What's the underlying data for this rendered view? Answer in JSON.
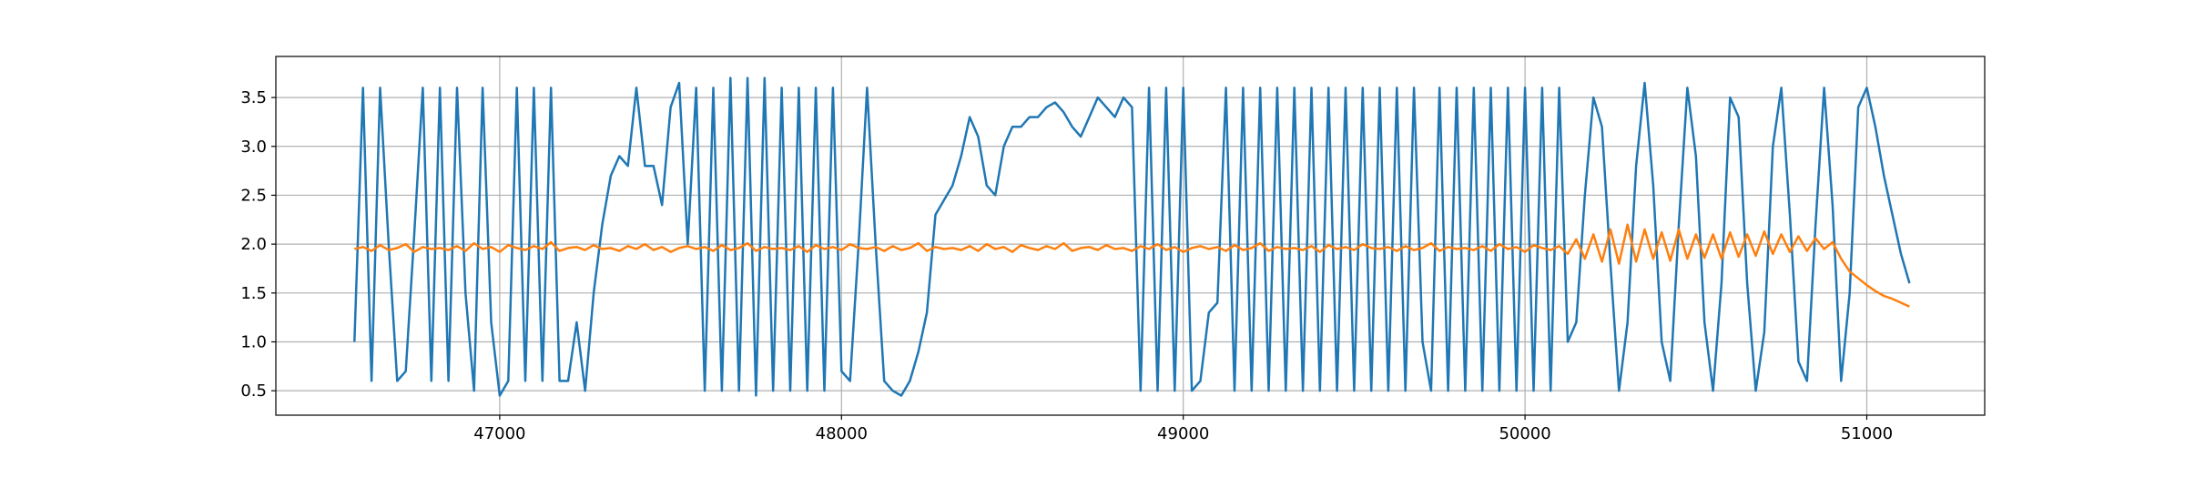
{
  "chart_data": {
    "type": "line",
    "x": [
      46575,
      46600,
      46625,
      46650,
      46675,
      46700,
      46725,
      46750,
      46775,
      46800,
      46825,
      46850,
      46875,
      46900,
      46925,
      46950,
      46975,
      47000,
      47025,
      47050,
      47075,
      47100,
      47125,
      47150,
      47175,
      47200,
      47225,
      47250,
      47275,
      47300,
      47325,
      47350,
      47375,
      47400,
      47425,
      47450,
      47475,
      47500,
      47525,
      47550,
      47575,
      47600,
      47625,
      47650,
      47675,
      47700,
      47725,
      47750,
      47775,
      47800,
      47825,
      47850,
      47875,
      47900,
      47925,
      47950,
      47975,
      48000,
      48025,
      48050,
      48075,
      48100,
      48125,
      48150,
      48175,
      48200,
      48225,
      48250,
      48275,
      48300,
      48325,
      48350,
      48375,
      48400,
      48425,
      48450,
      48475,
      48500,
      48525,
      48550,
      48575,
      48600,
      48625,
      48650,
      48675,
      48700,
      48725,
      48750,
      48775,
      48800,
      48825,
      48850,
      48875,
      48900,
      48925,
      48950,
      48975,
      49000,
      49025,
      49050,
      49075,
      49100,
      49125,
      49150,
      49175,
      49200,
      49225,
      49250,
      49275,
      49300,
      49325,
      49350,
      49375,
      49400,
      49425,
      49450,
      49475,
      49500,
      49525,
      49550,
      49575,
      49600,
      49625,
      49650,
      49675,
      49700,
      49725,
      49750,
      49775,
      49800,
      49825,
      49850,
      49875,
      49900,
      49925,
      49950,
      49975,
      50000,
      50025,
      50050,
      50075,
      50100,
      50125,
      50150,
      50175,
      50200,
      50225,
      50250,
      50275,
      50300,
      50325,
      50350,
      50375,
      50400,
      50425,
      50450,
      50475,
      50500,
      50525,
      50550,
      50575,
      50600,
      50625,
      50650,
      50675,
      50700,
      50725,
      50750,
      50775,
      50800,
      50825,
      50850,
      50875,
      50900,
      50925,
      50950,
      50975,
      51000,
      51025,
      51050,
      51075,
      51100,
      51125
    ],
    "series": [
      {
        "color": "#1f77b4",
        "values": [
          1.0,
          3.6,
          0.6,
          3.6,
          2.0,
          0.6,
          0.7,
          2.1,
          3.6,
          0.6,
          3.6,
          0.6,
          3.6,
          1.5,
          0.5,
          3.6,
          1.2,
          0.45,
          0.6,
          3.6,
          0.6,
          3.6,
          0.6,
          3.6,
          0.6,
          0.6,
          1.2,
          0.5,
          1.5,
          2.2,
          2.7,
          2.9,
          2.8,
          3.6,
          2.8,
          2.8,
          2.4,
          3.4,
          3.65,
          2.0,
          3.6,
          0.5,
          3.6,
          0.5,
          3.7,
          0.5,
          3.7,
          0.45,
          3.7,
          0.5,
          3.6,
          0.5,
          3.6,
          0.5,
          3.6,
          0.5,
          3.6,
          0.7,
          0.6,
          2.0,
          3.6,
          2.0,
          0.6,
          0.5,
          0.45,
          0.6,
          0.9,
          1.3,
          2.3,
          2.45,
          2.6,
          2.9,
          3.3,
          3.1,
          2.6,
          2.5,
          3.0,
          3.2,
          3.2,
          3.3,
          3.3,
          3.4,
          3.45,
          3.35,
          3.2,
          3.1,
          3.3,
          3.5,
          3.4,
          3.3,
          3.5,
          3.4,
          0.5,
          3.6,
          0.5,
          3.6,
          0.5,
          3.6,
          0.5,
          0.6,
          1.3,
          1.4,
          3.6,
          0.5,
          3.6,
          0.5,
          3.6,
          0.5,
          3.6,
          0.5,
          3.6,
          0.5,
          3.6,
          0.5,
          3.6,
          0.5,
          3.6,
          0.5,
          3.6,
          0.5,
          3.6,
          0.5,
          3.6,
          0.5,
          3.6,
          1.0,
          0.5,
          3.6,
          0.5,
          3.6,
          0.5,
          3.6,
          0.5,
          3.6,
          0.5,
          3.6,
          0.5,
          3.6,
          0.5,
          3.6,
          0.5,
          3.6,
          1.0,
          1.2,
          2.5,
          3.5,
          3.2,
          1.8,
          0.5,
          1.2,
          2.8,
          3.65,
          2.6,
          1.0,
          0.6,
          2.2,
          3.6,
          2.9,
          1.2,
          0.5,
          1.6,
          3.5,
          3.3,
          1.6,
          0.5,
          1.1,
          3.0,
          3.6,
          2.3,
          0.8,
          0.6,
          2.2,
          3.6,
          2.4,
          0.6,
          1.5,
          3.4,
          3.6,
          3.2,
          2.7,
          2.3,
          1.9,
          1.6
        ]
      },
      {
        "color": "#ff7f0e",
        "values": [
          1.95,
          1.97,
          1.93,
          1.99,
          1.94,
          1.96,
          2.0,
          1.92,
          1.97,
          1.95,
          1.96,
          1.94,
          1.98,
          1.93,
          2.01,
          1.95,
          1.97,
          1.92,
          1.99,
          1.96,
          1.94,
          1.98,
          1.95,
          2.02,
          1.93,
          1.96,
          1.97,
          1.94,
          1.99,
          1.95,
          1.96,
          1.93,
          1.98,
          1.95,
          2.0,
          1.94,
          1.97,
          1.92,
          1.96,
          1.98,
          1.95,
          1.97,
          1.93,
          1.99,
          1.94,
          1.96,
          2.01,
          1.93,
          1.97,
          1.95,
          1.96,
          1.94,
          1.98,
          1.92,
          1.99,
          1.95,
          1.97,
          1.94,
          2.0,
          1.96,
          1.95,
          1.97,
          1.93,
          1.98,
          1.94,
          1.96,
          2.01,
          1.93,
          1.97,
          1.95,
          1.96,
          1.94,
          1.98,
          1.93,
          2.0,
          1.95,
          1.97,
          1.92,
          1.99,
          1.96,
          1.94,
          1.98,
          1.95,
          2.01,
          1.93,
          1.96,
          1.97,
          1.94,
          1.99,
          1.95,
          1.96,
          1.93,
          1.98,
          1.95,
          2.0,
          1.94,
          1.97,
          1.92,
          1.96,
          1.98,
          1.95,
          1.97,
          1.93,
          1.99,
          1.94,
          1.96,
          2.01,
          1.93,
          1.97,
          1.95,
          1.96,
          1.94,
          1.98,
          1.92,
          1.99,
          1.95,
          1.97,
          1.94,
          2.0,
          1.96,
          1.95,
          1.97,
          1.93,
          1.98,
          1.94,
          1.96,
          2.01,
          1.93,
          1.97,
          1.95,
          1.96,
          1.94,
          1.98,
          1.93,
          2.0,
          1.95,
          1.97,
          1.92,
          1.99,
          1.96,
          1.94,
          1.98,
          1.9,
          2.05,
          1.85,
          2.1,
          1.82,
          2.15,
          1.8,
          2.2,
          1.82,
          2.15,
          1.85,
          2.12,
          1.83,
          2.15,
          1.85,
          2.1,
          1.86,
          2.1,
          1.85,
          2.12,
          1.87,
          2.1,
          1.88,
          2.13,
          1.9,
          2.1,
          1.92,
          2.08,
          1.93,
          2.06,
          1.95,
          2.02,
          1.85,
          1.72,
          1.65,
          1.58,
          1.52,
          1.47,
          1.44,
          1.4,
          1.36
        ]
      }
    ],
    "xlim": [
      46345,
      51345
    ],
    "ylim": [
      0.25,
      3.92
    ],
    "xticks": [
      47000,
      48000,
      49000,
      50000,
      51000
    ],
    "yticks": [
      {
        "value": 0.5,
        "label": "0.5"
      },
      {
        "value": 1.0,
        "label": "1.0"
      },
      {
        "value": 1.5,
        "label": "1.5"
      },
      {
        "value": 2.0,
        "label": "2.0"
      },
      {
        "value": 2.5,
        "label": "2.5"
      },
      {
        "value": 3.0,
        "label": "3.0"
      },
      {
        "value": 3.5,
        "label": "3.5"
      }
    ],
    "grid": true
  }
}
